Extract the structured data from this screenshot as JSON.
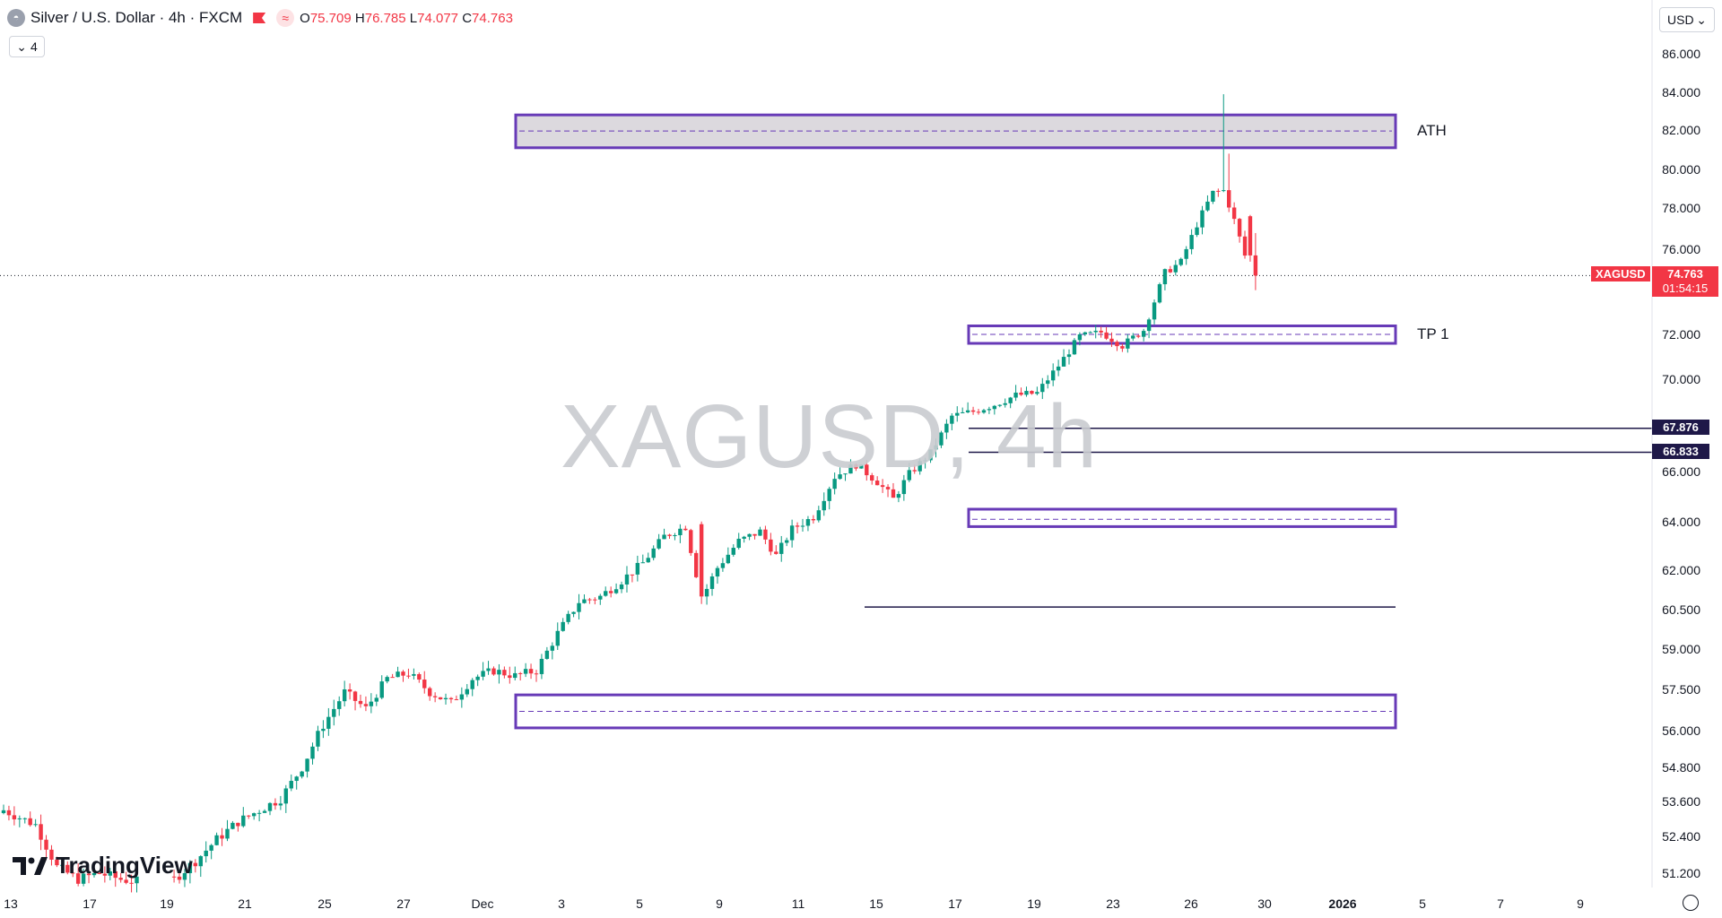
{
  "header": {
    "title": "Silver / U.S. Dollar · 4h · FXCM",
    "open_label": "O",
    "open": "75.709",
    "high_label": "H",
    "high": "76.785",
    "low_label": "L",
    "low": "74.077",
    "close_label": "C",
    "close": "74.763",
    "indicator_count": "4",
    "currency": "USD"
  },
  "watermark": "XAGUSD, 4h",
  "logo_text": "TradingView",
  "zones": [
    {
      "label": "ATH",
      "top": 82.8,
      "bottom": 81.1,
      "mid": 81.95
    },
    {
      "label": "TP 1",
      "top": 72.4,
      "bottom": 71.6,
      "mid": 72.0
    },
    {
      "label": "",
      "top": 64.5,
      "bottom": 63.8,
      "mid": 64.1
    },
    {
      "label": "",
      "top": 57.3,
      "bottom": 56.1,
      "mid": 56.7
    }
  ],
  "levels": [
    {
      "value": "67.876",
      "price": 67.876
    },
    {
      "value": "66.833",
      "price": 66.833
    }
  ],
  "support_line": 60.6,
  "current_price": {
    "symbol": "XAGUSD",
    "value": "74.763",
    "countdown": "01:54:15",
    "price": 74.763
  },
  "colors": {
    "up": "#089981",
    "down": "#f23645",
    "zone": "#673ab7",
    "ath_fill": "#dcd9de",
    "level": "#1e1848"
  },
  "chart_data": {
    "type": "candlestick",
    "title": "Silver / U.S. Dollar · 4h · FXCM",
    "xlabel": "",
    "ylabel": "",
    "y_ticks": [
      "86.000",
      "84.000",
      "82.000",
      "80.000",
      "78.000",
      "76.000",
      "72.000",
      "70.000",
      "66.000",
      "64.000",
      "62.000",
      "60.500",
      "59.000",
      "57.500",
      "56.000",
      "54.800",
      "53.600",
      "52.400",
      "51.200"
    ],
    "x_ticks": [
      "13",
      "17",
      "19",
      "21",
      "25",
      "27",
      "Dec",
      "3",
      "5",
      "9",
      "11",
      "15",
      "17",
      "19",
      "23",
      "26",
      "30",
      "2026",
      "5",
      "7",
      "9"
    ],
    "close_path": [
      [
        0,
        53.3
      ],
      [
        6,
        52.8
      ],
      [
        10,
        51.4
      ],
      [
        14,
        51.0
      ],
      [
        18,
        51.2
      ],
      [
        22,
        51.0
      ],
      [
        26,
        50.9
      ],
      [
        32,
        51.0
      ],
      [
        36,
        51.6
      ],
      [
        40,
        52.3
      ],
      [
        44,
        52.9
      ],
      [
        48,
        53.3
      ],
      [
        52,
        53.7
      ],
      [
        56,
        54.8
      ],
      [
        60,
        56.2
      ],
      [
        64,
        57.4
      ],
      [
        68,
        56.8
      ],
      [
        72,
        57.9
      ],
      [
        76,
        58.1
      ],
      [
        80,
        57.4
      ],
      [
        84,
        57.0
      ],
      [
        88,
        57.9
      ],
      [
        92,
        58.2
      ],
      [
        96,
        58.0
      ],
      [
        100,
        58.2
      ],
      [
        104,
        59.6
      ],
      [
        108,
        60.8
      ],
      [
        112,
        61.0
      ],
      [
        116,
        61.6
      ],
      [
        120,
        62.3
      ],
      [
        124,
        63.4
      ],
      [
        128,
        63.8
      ],
      [
        131,
        60.9
      ],
      [
        134,
        62.1
      ],
      [
        138,
        63.2
      ],
      [
        142,
        63.6
      ],
      [
        145,
        62.6
      ],
      [
        148,
        63.7
      ],
      [
        152,
        64.2
      ],
      [
        156,
        65.8
      ],
      [
        160,
        66.3
      ],
      [
        164,
        65.6
      ],
      [
        167,
        64.9
      ],
      [
        170,
        65.9
      ],
      [
        174,
        66.8
      ],
      [
        178,
        68.4
      ],
      [
        182,
        68.6
      ],
      [
        186,
        68.9
      ],
      [
        190,
        69.3
      ],
      [
        194,
        69.4
      ],
      [
        198,
        70.6
      ],
      [
        202,
        71.9
      ],
      [
        206,
        72.1
      ],
      [
        210,
        71.5
      ],
      [
        214,
        72.2
      ],
      [
        218,
        74.9
      ],
      [
        221,
        75.4
      ],
      [
        224,
        77.2
      ],
      [
        227,
        78.8
      ],
      [
        229,
        78.9
      ],
      [
        231,
        77.4
      ],
      [
        233,
        75.7
      ],
      [
        235,
        74.763
      ]
    ]
  }
}
